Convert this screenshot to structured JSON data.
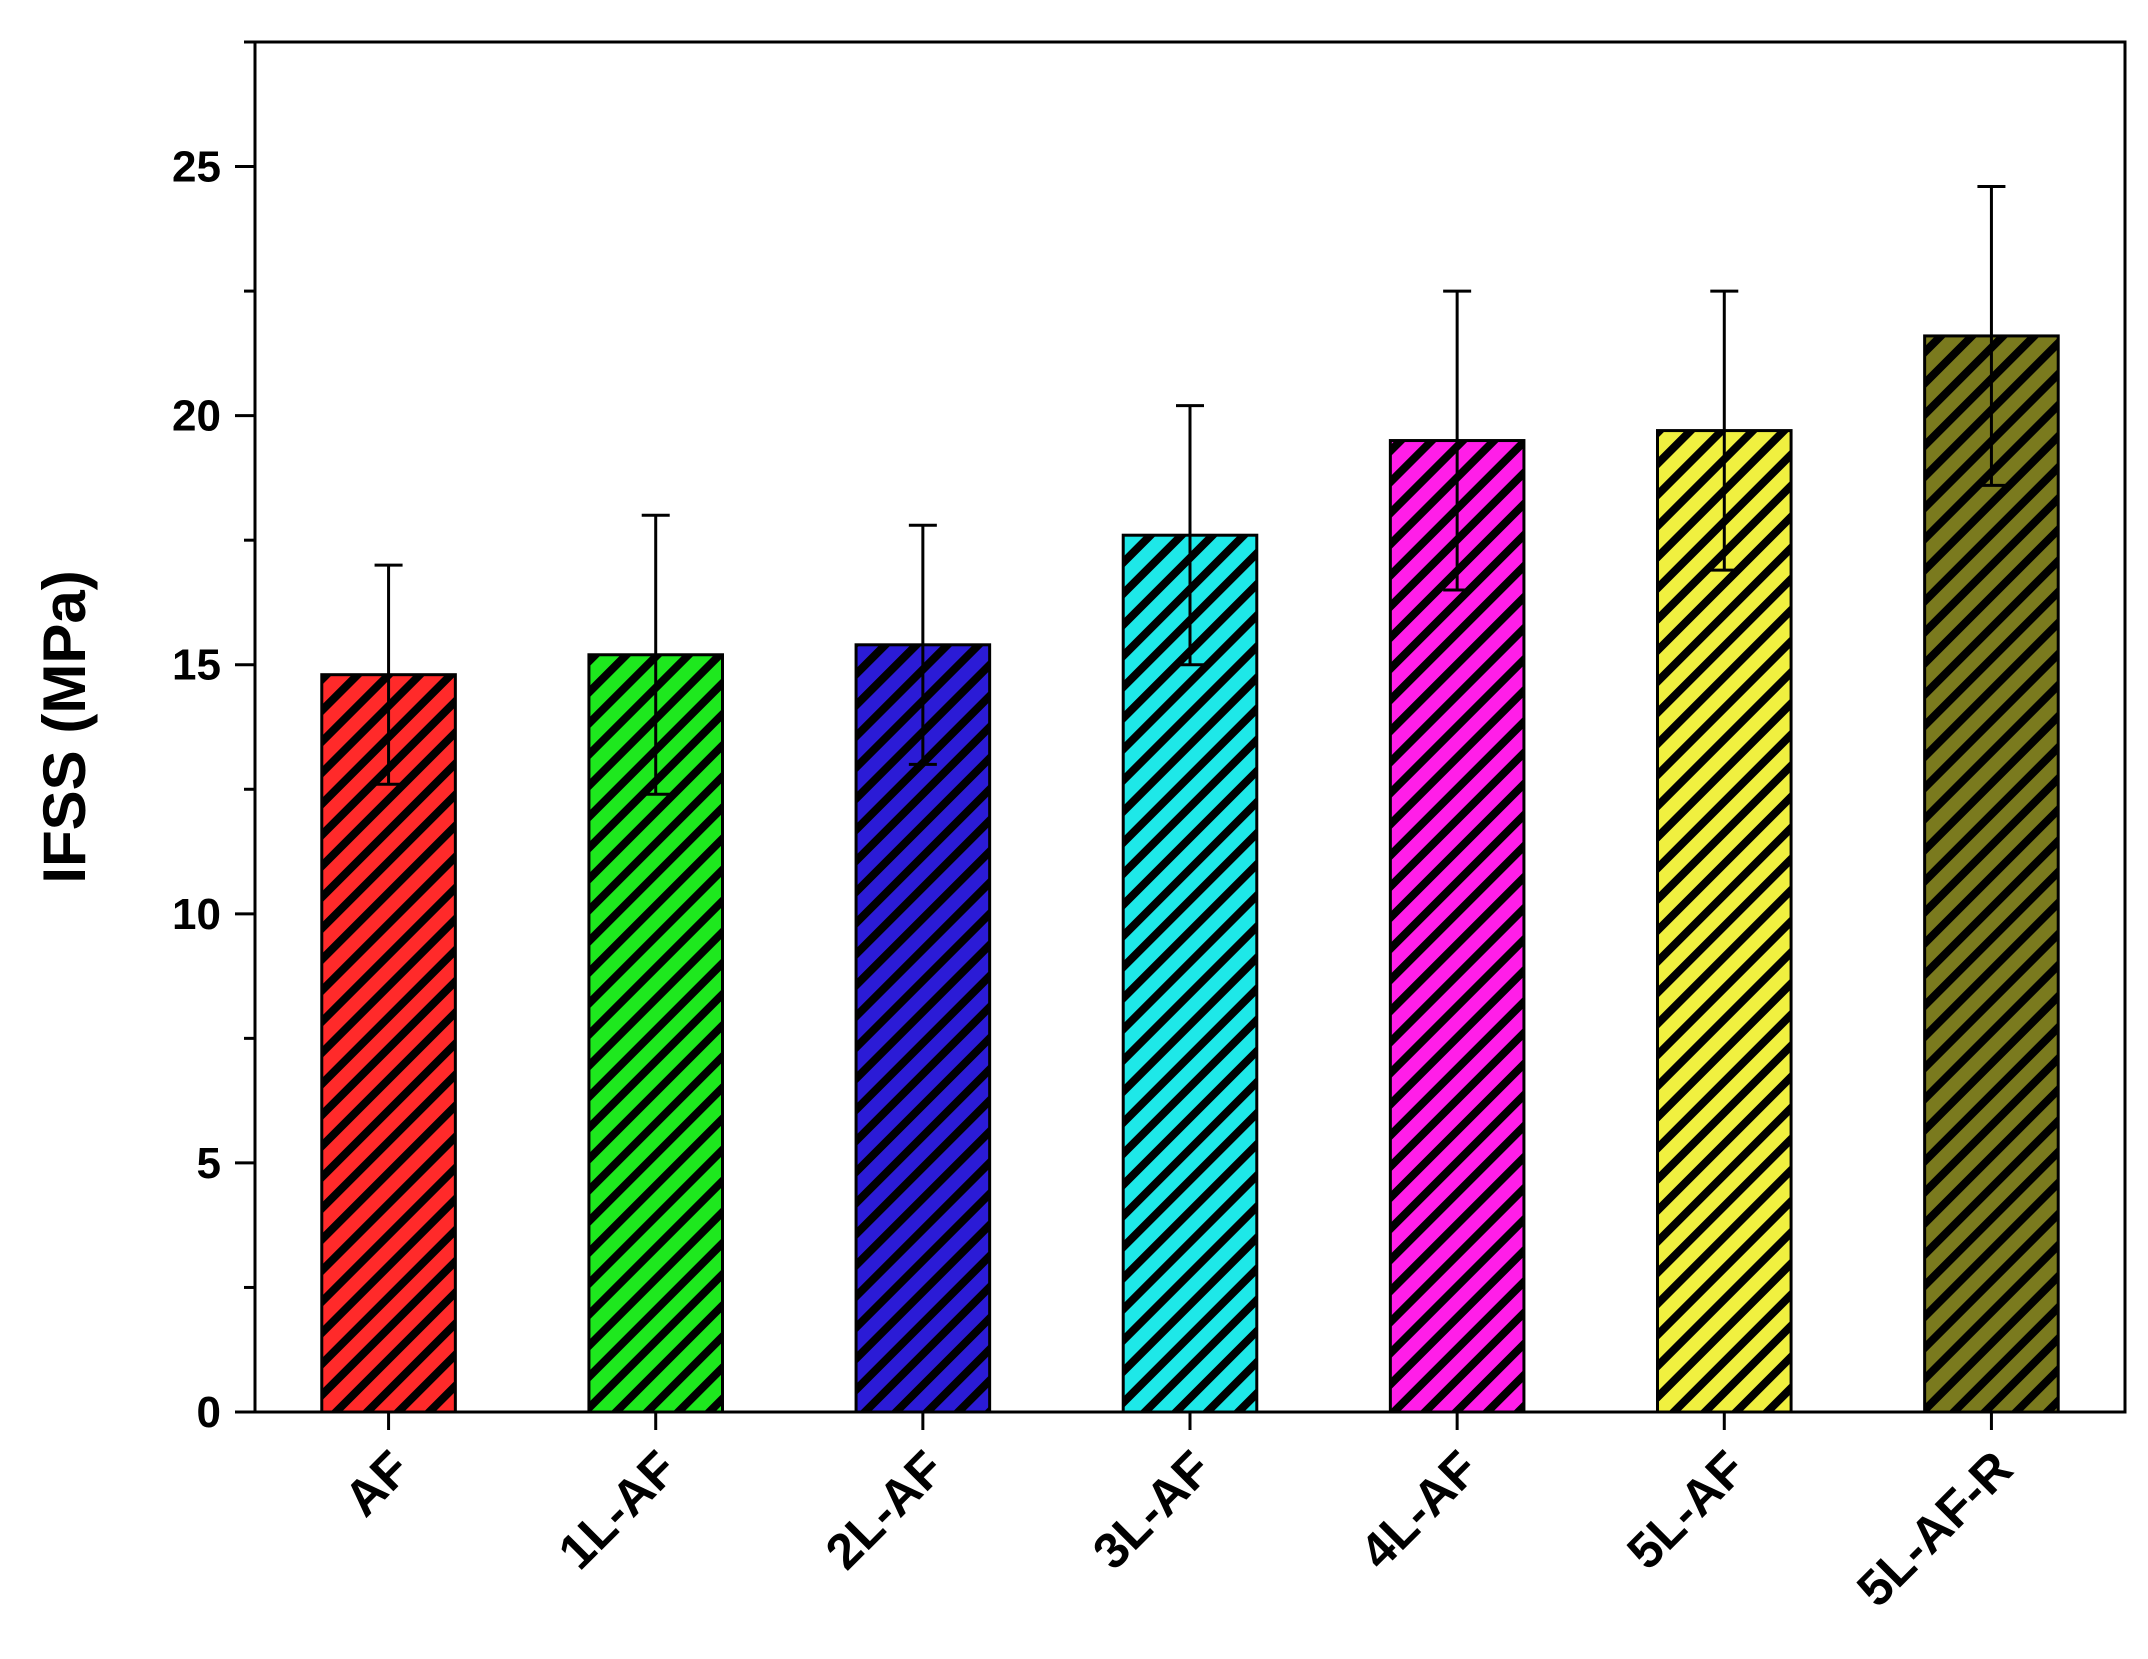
{
  "chart_data": {
    "type": "bar",
    "title": "",
    "xlabel": "",
    "ylabel": "IFSS (MPa)",
    "ylim": [
      0,
      27.5
    ],
    "y_ticks": [
      0,
      5,
      10,
      15,
      20,
      25
    ],
    "y_minor_step": 2.5,
    "grid": false,
    "legend": "none",
    "fill_pattern": "diagonal-hatch",
    "categories": [
      "AF",
      "1L-AF",
      "2L-AF",
      "3L-AF",
      "4L-AF",
      "5L-AF",
      "5L-AF-R"
    ],
    "values": [
      14.8,
      15.2,
      15.4,
      17.6,
      19.5,
      19.7,
      21.6
    ],
    "errors": [
      2.2,
      2.8,
      2.4,
      2.6,
      3.0,
      2.8,
      3.0
    ],
    "colors": [
      "#ff2a2a",
      "#1ee81e",
      "#2b1bd6",
      "#1ee8e8",
      "#ff1ee8",
      "#f0f040",
      "#7a7a1e"
    ]
  }
}
